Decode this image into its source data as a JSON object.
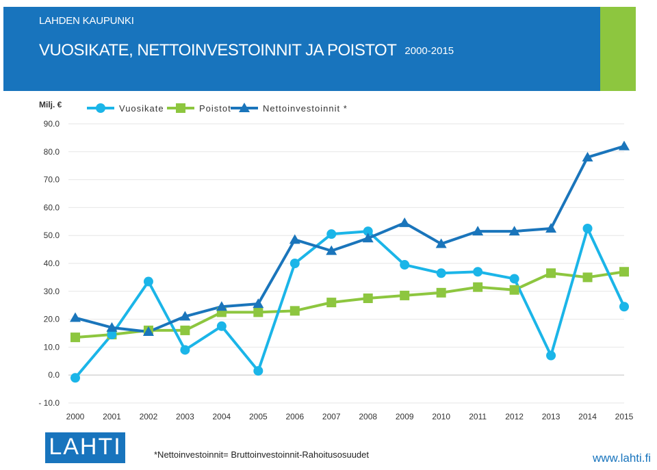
{
  "header": {
    "org": "LAHDEN KAUPUNKI",
    "title": "VUOSIKATE, NETTOINVESTOINNIT JA POISTOT",
    "years": "2000-2015"
  },
  "colors": {
    "brand_blue": "#1874bd",
    "brand_green": "#8dc63f"
  },
  "chart_data": {
    "type": "line",
    "ylabel": "Milj. €",
    "ylim": [
      -10,
      90
    ],
    "yticks": [
      "- 10.0",
      "0.0",
      "10.0",
      "20.0",
      "30.0",
      "40.0",
      "50.0",
      "60.0",
      "70.0",
      "80.0",
      "90.0"
    ],
    "ytick_values": [
      -10,
      0,
      10,
      20,
      30,
      40,
      50,
      60,
      70,
      80,
      90
    ],
    "categories": [
      "2000",
      "2001",
      "2002",
      "2003",
      "2004",
      "2005",
      "2006",
      "2007",
      "2008",
      "2009",
      "2010",
      "2011",
      "2012",
      "2013",
      "2014",
      "2015"
    ],
    "grid": true,
    "legend_position": "top",
    "series": [
      {
        "name": "Vuosikate",
        "color": "#1bb5e8",
        "marker": "circle",
        "values": [
          -1,
          14.5,
          33.5,
          9,
          17.5,
          1.5,
          40,
          50.5,
          51.5,
          39.5,
          36.5,
          37,
          34.5,
          7,
          52.5,
          24.5
        ]
      },
      {
        "name": "Poistot",
        "color": "#8dc63f",
        "marker": "square",
        "values": [
          13.5,
          14.5,
          16,
          16,
          22.5,
          22.5,
          23,
          26,
          27.5,
          28.5,
          29.5,
          31.5,
          30.5,
          36.5,
          35,
          37
        ]
      },
      {
        "name": "Nettoinvestoinnit *",
        "color": "#1a75bb",
        "marker": "triangle",
        "values": [
          20.5,
          17,
          15.5,
          21,
          24.5,
          25.5,
          48.5,
          44.5,
          49,
          54.5,
          47,
          51.5,
          51.5,
          52.5,
          78,
          82
        ]
      }
    ]
  },
  "footnote": "*Nettoinvestoinnit=  Bruttoinvestoinnit-Rahoitusosuudet",
  "logo_text": "LAHTI",
  "url": "www.lahti.fi"
}
